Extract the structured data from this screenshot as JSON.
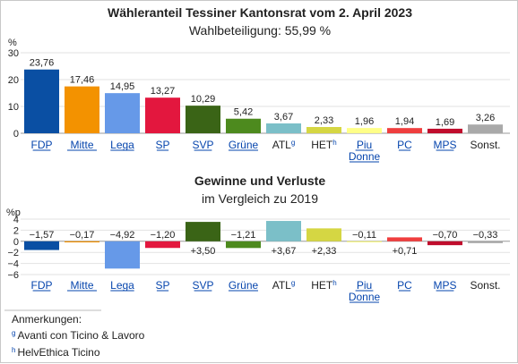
{
  "chart_data": [
    {
      "type": "bar",
      "title": "Wähleranteil Tessiner Kantonsrat vom 2. April 2023",
      "subtitle": "Wahlbeteiligung: 55,99 %",
      "ylabel": "%",
      "ylim": [
        0,
        30
      ],
      "yticks": [
        0,
        10,
        20,
        30
      ],
      "grid": true,
      "categories": [
        {
          "label": "FDP",
          "link": true,
          "sup": ""
        },
        {
          "label": "Mitte",
          "link": true,
          "sup": ""
        },
        {
          "label": "Lega",
          "link": true,
          "sup": ""
        },
        {
          "label": "SP",
          "link": true,
          "sup": ""
        },
        {
          "label": "SVP",
          "link": true,
          "sup": ""
        },
        {
          "label": "Grüne",
          "link": true,
          "sup": ""
        },
        {
          "label": "ATL",
          "link": false,
          "sup": "g"
        },
        {
          "label": "HET",
          "link": false,
          "sup": "h"
        },
        {
          "label": "Piu Donne",
          "link": true,
          "sup": ""
        },
        {
          "label": "PC",
          "link": true,
          "sup": ""
        },
        {
          "label": "MPS",
          "link": true,
          "sup": ""
        },
        {
          "label": "Sonst.",
          "link": false,
          "sup": ""
        }
      ],
      "values": [
        23.76,
        17.46,
        14.95,
        13.27,
        10.29,
        5.42,
        3.67,
        2.33,
        1.96,
        1.94,
        1.69,
        3.26
      ],
      "value_labels": [
        "23,76",
        "17,46",
        "14,95",
        "13,27",
        "10,29",
        "5,42",
        "3,67",
        "2,33",
        "1,96",
        "1,94",
        "1,69",
        "3,26"
      ],
      "colors": [
        "#0a4fa3",
        "#f39200",
        "#6699e8",
        "#e3173e",
        "#3a6416",
        "#4d8a1e",
        "#7bbfc8",
        "#d5d643",
        "#ffff88",
        "#ef3e3e",
        "#c00d2d",
        "#a9a9a9"
      ]
    },
    {
      "type": "bar",
      "title": "Gewinne und Verluste",
      "subtitle": "im Vergleich zu 2019",
      "ylabel": "%p",
      "ylim": [
        -6,
        4
      ],
      "yticks": [
        4,
        2,
        0,
        -2,
        -4,
        -6
      ],
      "grid": true,
      "values": [
        -1.57,
        -0.17,
        -4.92,
        -1.2,
        3.5,
        -1.21,
        3.67,
        2.33,
        -0.11,
        0.71,
        -0.7,
        -0.33
      ],
      "value_labels": [
        "−1,57",
        "−0,17",
        "−4,92",
        "−1,20",
        "+3,50",
        "−1,21",
        "+3,67",
        "+2,33",
        "−0,11",
        "+0,71",
        "−0,70",
        "−0,33"
      ]
    }
  ],
  "notes": {
    "heading": "Anmerkungen:",
    "items": [
      {
        "sup": "g",
        "text": "Avanti con Ticino & Lavoro"
      },
      {
        "sup": "h",
        "text": "HelvEthica Ticino"
      }
    ]
  }
}
